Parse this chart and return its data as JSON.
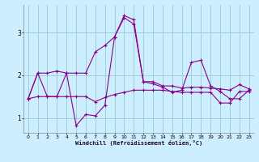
{
  "xlabel": "Windchill (Refroidissement éolien,°C)",
  "bg_color": "#cceeff",
  "line_color": "#880088",
  "grid_color": "#99cccc",
  "x": [
    0,
    1,
    2,
    3,
    4,
    5,
    6,
    7,
    8,
    9,
    10,
    11,
    12,
    13,
    14,
    15,
    16,
    17,
    18,
    19,
    20,
    21,
    22,
    23
  ],
  "series1": [
    1.45,
    2.05,
    2.05,
    2.1,
    2.05,
    2.05,
    2.05,
    2.55,
    2.7,
    2.9,
    3.35,
    3.2,
    1.85,
    1.85,
    1.75,
    1.75,
    1.7,
    1.72,
    1.72,
    1.7,
    1.68,
    1.65,
    1.78,
    1.68
  ],
  "series2": [
    1.45,
    2.05,
    1.5,
    1.5,
    2.05,
    0.82,
    1.08,
    1.05,
    1.3,
    2.9,
    3.4,
    3.3,
    1.85,
    1.8,
    1.72,
    1.6,
    1.65,
    2.3,
    2.35,
    1.75,
    1.62,
    1.45,
    1.45,
    1.65
  ],
  "series3": [
    1.45,
    1.5,
    1.5,
    1.5,
    1.5,
    1.5,
    1.5,
    1.38,
    1.48,
    1.55,
    1.6,
    1.65,
    1.65,
    1.65,
    1.65,
    1.62,
    1.6,
    1.6,
    1.6,
    1.6,
    1.35,
    1.35,
    1.62,
    1.62
  ],
  "ylim": [
    0.65,
    3.65
  ],
  "yticks": [
    1,
    2,
    3
  ],
  "xticks": [
    0,
    1,
    2,
    3,
    4,
    5,
    6,
    7,
    8,
    9,
    10,
    11,
    12,
    13,
    14,
    15,
    16,
    17,
    18,
    19,
    20,
    21,
    22,
    23
  ],
  "marker": "+",
  "markersize": 3,
  "linewidth": 0.8
}
